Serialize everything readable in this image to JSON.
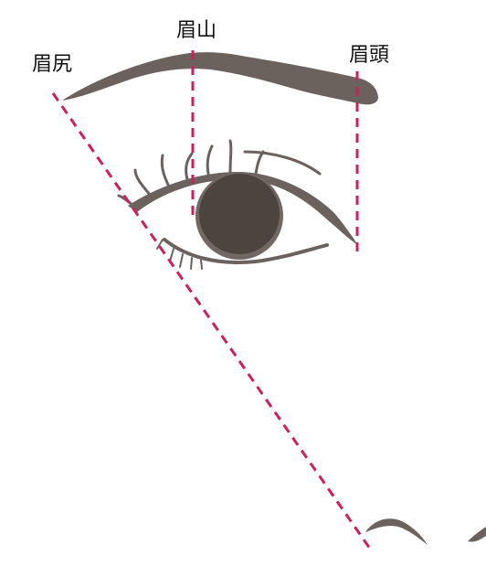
{
  "labels": {
    "brow_tail": "眉尻",
    "brow_peak": "眉山",
    "brow_head": "眉頭"
  },
  "colors": {
    "guide_line": "#cc1f5c",
    "brow": "#6b615d",
    "iris": "#4d4440",
    "iris_ring": "#716864",
    "eye_outline": "#6b615d",
    "background": "#ffffff"
  }
}
